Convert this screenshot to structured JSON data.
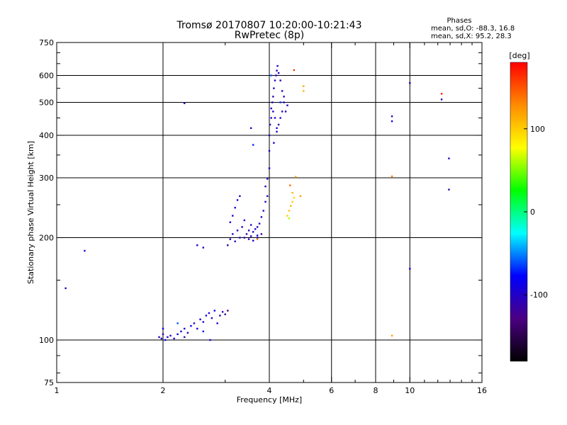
{
  "chart_data": {
    "type": "scatter",
    "title": "Tromsø 20170807 10:20:00-10:21:43",
    "subtitle": "RwPretec (8p)",
    "xlabel": "Frequency [MHz]",
    "ylabel": "Stationary phase Virtual Height [km]",
    "x_scale": "log",
    "y_scale": "log",
    "xlim": [
      1,
      16
    ],
    "ylim": [
      75,
      750
    ],
    "x_ticks": [
      1,
      2,
      4,
      6,
      8,
      10,
      16
    ],
    "x_tick_labels": [
      "1",
      "2",
      "4",
      "6",
      "8",
      "10",
      "16"
    ],
    "y_ticks": [
      75,
      100,
      200,
      300,
      400,
      500,
      600,
      750
    ],
    "y_tick_labels": [
      "75",
      "100",
      "200",
      "300",
      "400",
      "500",
      "600",
      "750"
    ],
    "x_gridlines": [
      2,
      4,
      6,
      8,
      10
    ],
    "y_gridlines": [
      100,
      200,
      300,
      400,
      500,
      600
    ],
    "grid": true,
    "phase_info": {
      "heading": "Phases",
      "line_o": "mean, sd,O: -88.3, 16.8",
      "line_x": "mean, sd,X:  95.2, 28.3"
    },
    "colorbar": {
      "label": "[deg]",
      "range": [
        -180,
        180
      ],
      "ticks": [
        100,
        0,
        -100
      ],
      "tick_labels": [
        "100",
        "0",
        "-100"
      ],
      "stops": [
        "#000000",
        "#4b0082",
        "#0000ff",
        "#00ffff",
        "#00ff00",
        "#ffff00",
        "#ff8c00",
        "#ff0000"
      ]
    },
    "points": [
      [
        1.06,
        142,
        -110
      ],
      [
        1.2,
        183,
        -95
      ],
      [
        1.95,
        102,
        -100
      ],
      [
        1.98,
        101,
        -90
      ],
      [
        2.0,
        104,
        -105
      ],
      [
        2.03,
        100,
        -80
      ],
      [
        2.06,
        102,
        -100
      ],
      [
        2.1,
        103,
        -110
      ],
      [
        2.15,
        101,
        -95
      ],
      [
        2.2,
        104,
        -85
      ],
      [
        2.25,
        106,
        -100
      ],
      [
        2.3,
        108,
        -90
      ],
      [
        2.35,
        105,
        -100
      ],
      [
        2.4,
        110,
        -80
      ],
      [
        2.45,
        112,
        -95
      ],
      [
        2.5,
        108,
        -100
      ],
      [
        2.55,
        115,
        -90
      ],
      [
        2.6,
        113,
        -105
      ],
      [
        2.65,
        118,
        -85
      ],
      [
        2.7,
        120,
        -95
      ],
      [
        2.75,
        116,
        -100
      ],
      [
        2.8,
        122,
        -80
      ],
      [
        2.85,
        112,
        -90
      ],
      [
        2.9,
        118,
        -100
      ],
      [
        2.95,
        121,
        -110
      ],
      [
        3.0,
        119,
        -115
      ],
      [
        3.05,
        122,
        -120
      ],
      [
        2.0,
        108,
        -85
      ],
      [
        2.3,
        102,
        -110
      ],
      [
        2.6,
        106,
        -75
      ],
      [
        2.2,
        112,
        -60
      ],
      [
        2.72,
        100,
        -100
      ],
      [
        2.3,
        497,
        -105
      ],
      [
        2.5,
        190,
        -95
      ],
      [
        2.6,
        187,
        -105
      ],
      [
        3.05,
        190,
        -110
      ],
      [
        3.1,
        198,
        -100
      ],
      [
        3.15,
        205,
        -95
      ],
      [
        3.2,
        195,
        -105
      ],
      [
        3.25,
        210,
        -100
      ],
      [
        3.3,
        200,
        -110
      ],
      [
        3.35,
        215,
        -95
      ],
      [
        3.4,
        200,
        -100
      ],
      [
        3.45,
        205,
        -115
      ],
      [
        3.5,
        210,
        -105
      ],
      [
        3.55,
        202,
        -100
      ],
      [
        3.6,
        208,
        -110
      ],
      [
        3.65,
        212,
        -95
      ],
      [
        3.7,
        215,
        -100
      ],
      [
        3.75,
        220,
        -105
      ],
      [
        3.8,
        230,
        -110
      ],
      [
        3.85,
        240,
        -100
      ],
      [
        3.9,
        255,
        -95
      ],
      [
        3.95,
        265,
        -105
      ],
      [
        3.1,
        222,
        -100
      ],
      [
        3.15,
        232,
        -105
      ],
      [
        3.2,
        245,
        -95
      ],
      [
        3.25,
        258,
        -100
      ],
      [
        3.3,
        265,
        -110
      ],
      [
        3.5,
        198,
        -115
      ],
      [
        3.6,
        196,
        -100
      ],
      [
        3.7,
        200,
        -95
      ],
      [
        3.8,
        205,
        -110
      ],
      [
        3.4,
        225,
        -100
      ],
      [
        3.55,
        218,
        -105
      ],
      [
        3.7,
        203,
        -90
      ],
      [
        3.9,
        283,
        -100
      ],
      [
        3.95,
        298,
        -95
      ],
      [
        3.55,
        420,
        -100
      ],
      [
        3.6,
        375,
        -70
      ],
      [
        3.7,
        198,
        130
      ],
      [
        4.0,
        320,
        -95
      ],
      [
        4.0,
        360,
        -100
      ],
      [
        4.0,
        400,
        -105
      ],
      [
        4.02,
        430,
        -110
      ],
      [
        4.05,
        450,
        -100
      ],
      [
        4.05,
        480,
        -95
      ],
      [
        4.08,
        500,
        -100
      ],
      [
        4.1,
        520,
        -105
      ],
      [
        4.12,
        550,
        -100
      ],
      [
        4.15,
        580,
        -110
      ],
      [
        4.18,
        600,
        -95
      ],
      [
        4.2,
        620,
        -100
      ],
      [
        4.22,
        640,
        -105
      ],
      [
        4.25,
        610,
        -100
      ],
      [
        4.3,
        580,
        -110
      ],
      [
        4.35,
        540,
        -100
      ],
      [
        4.4,
        500,
        -95
      ],
      [
        4.45,
        470,
        -100
      ],
      [
        4.3,
        450,
        -105
      ],
      [
        4.25,
        430,
        -110
      ],
      [
        4.2,
        420,
        -100
      ],
      [
        4.15,
        450,
        -95
      ],
      [
        4.1,
        470,
        -100
      ],
      [
        4.05,
        600,
        -60
      ],
      [
        4.3,
        500,
        -70
      ],
      [
        4.4,
        520,
        -105
      ],
      [
        4.5,
        490,
        -100
      ],
      [
        4.35,
        470,
        -110
      ],
      [
        4.2,
        410,
        -95
      ],
      [
        4.12,
        380,
        -100
      ],
      [
        4.5,
        232,
        100
      ],
      [
        4.55,
        240,
        105
      ],
      [
        4.6,
        248,
        110
      ],
      [
        4.65,
        255,
        100
      ],
      [
        4.7,
        262,
        95
      ],
      [
        4.65,
        271,
        110
      ],
      [
        4.58,
        285,
        140
      ],
      [
        4.75,
        302,
        115
      ],
      [
        4.9,
        265,
        120
      ],
      [
        4.55,
        228,
        60
      ],
      [
        5.0,
        540,
        110
      ],
      [
        5.0,
        558,
        115
      ],
      [
        4.7,
        622,
        160
      ],
      [
        8.9,
        440,
        -85
      ],
      [
        8.9,
        455,
        -110
      ],
      [
        8.9,
        303,
        130
      ],
      [
        8.9,
        103,
        120
      ],
      [
        10.0,
        570,
        -100
      ],
      [
        10.0,
        162,
        -85
      ],
      [
        12.3,
        530,
        170
      ],
      [
        12.3,
        510,
        -100
      ],
      [
        12.9,
        342,
        -100
      ],
      [
        12.9,
        277,
        -110
      ]
    ]
  }
}
